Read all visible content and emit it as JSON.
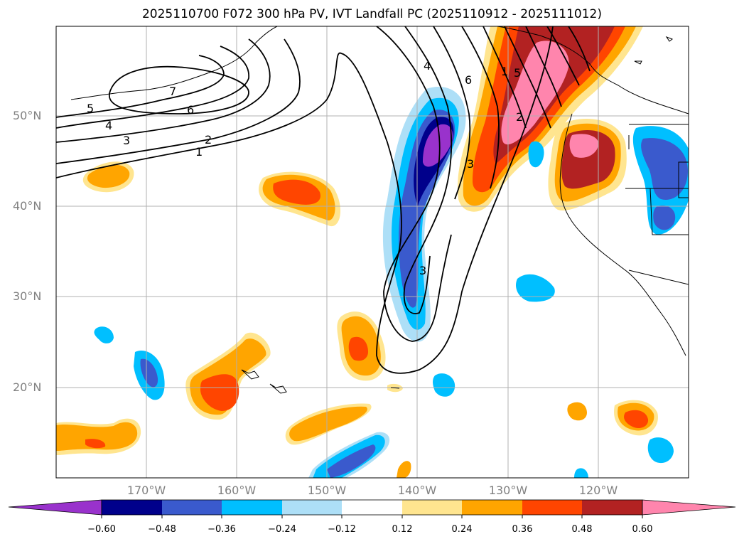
{
  "title": "2025110700 F072 300 hPa PV, IVT Landfall PC (2025110912 - 2025111012)",
  "map": {
    "lat_labels": [
      "50°N",
      "40°N",
      "30°N",
      "20°N"
    ],
    "lon_labels": [
      "170°W",
      "160°W",
      "150°W",
      "140°W",
      "130°W",
      "120°W"
    ],
    "pv_contour_labels": [
      "7",
      "6",
      "5",
      "4",
      "3",
      "2",
      "1",
      "4",
      "6",
      "3",
      "2",
      "3",
      "1",
      "5"
    ]
  },
  "colorbar": {
    "ticks": [
      "−0.60",
      "−0.48",
      "−0.36",
      "−0.24",
      "−0.12",
      "0.12",
      "0.24",
      "0.36",
      "0.48",
      "0.60"
    ],
    "colors": [
      "#9932CC",
      "#00008B",
      "#3A5ACD",
      "#00BFFF",
      "#ADDFF7",
      "#FFFFFF",
      "#FFE58F",
      "#FFA500",
      "#FF4500",
      "#B22222",
      "#FF85AD"
    ]
  }
}
